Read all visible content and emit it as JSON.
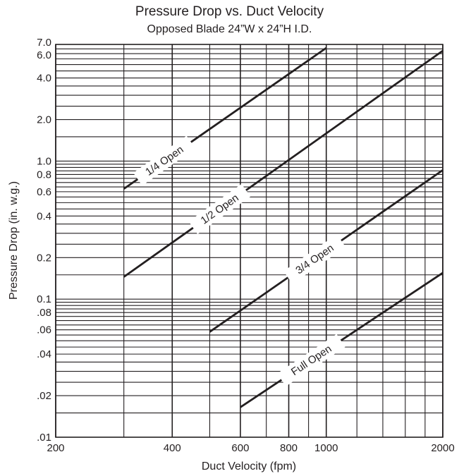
{
  "chart_data": {
    "type": "line",
    "title": "Pressure Drop vs. Duct Velocity",
    "subtitle": "Opposed Blade 24”W x 24”H I.D.",
    "xlabel": "Duct Velocity (fpm)",
    "ylabel": "Pressure Drop (in. w.g.)",
    "xscale": "log",
    "yscale": "log",
    "xlim": [
      200,
      2000
    ],
    "ylim": [
      0.01,
      7.0
    ],
    "grid": true,
    "x_ticks": [
      {
        "value": 200,
        "label": "200"
      },
      {
        "value": 400,
        "label": "400"
      },
      {
        "value": 600,
        "label": "600"
      },
      {
        "value": 800,
        "label": "800"
      },
      {
        "value": 1000,
        "label": "1000"
      },
      {
        "value": 2000,
        "label": "2000"
      }
    ],
    "y_ticks": [
      {
        "value": 7.0,
        "label": "7.0"
      },
      {
        "value": 6.0,
        "label": "6.0"
      },
      {
        "value": 4.0,
        "label": "4.0"
      },
      {
        "value": 2.0,
        "label": "2.0"
      },
      {
        "value": 1.0,
        "label": "1.0"
      },
      {
        "value": 0.8,
        "label": "0.8"
      },
      {
        "value": 0.6,
        "label": "0.6"
      },
      {
        "value": 0.4,
        "label": "0.4"
      },
      {
        "value": 0.2,
        "label": "0.2"
      },
      {
        "value": 0.1,
        "label": "0.1"
      },
      {
        "value": 0.08,
        "label": ".08"
      },
      {
        "value": 0.06,
        "label": ".06"
      },
      {
        "value": 0.04,
        "label": ".04"
      },
      {
        "value": 0.02,
        "label": ".02"
      },
      {
        "value": 0.01,
        "label": ".01"
      }
    ],
    "series": [
      {
        "name": "1/4 Open",
        "x": [
          300,
          1000
        ],
        "y": [
          0.63,
          6.6
        ],
        "label_at": 0.2
      },
      {
        "name": "1/2 Open",
        "x": [
          300,
          2000
        ],
        "y": [
          0.145,
          6.3
        ],
        "label_at": 0.3
      },
      {
        "name": "3/4 Open",
        "x": [
          500,
          2000
        ],
        "y": [
          0.058,
          0.86
        ],
        "label_at": 0.45
      },
      {
        "name": "Full Open",
        "x": [
          600,
          2000
        ],
        "y": [
          0.0165,
          0.155
        ],
        "label_at": 0.35
      }
    ],
    "colors": {
      "line": "#231f20",
      "grid": "#231f20",
      "background": "#ffffff"
    }
  }
}
